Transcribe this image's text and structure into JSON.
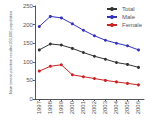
{
  "chart_data": {
    "type": "line",
    "x": [
      1997,
      1998,
      1999,
      2000,
      2001,
      2002,
      2003,
      2004,
      2005,
      2006
    ],
    "series": [
      {
        "name": "Total",
        "color": "#333333",
        "values": [
          132,
          148,
          145,
          136,
          125,
          115,
          107,
          98,
          93,
          85
        ]
      },
      {
        "name": "Male",
        "color": "#3333bb",
        "values": [
          195,
          222,
          218,
          202,
          185,
          170,
          158,
          150,
          143,
          132
        ]
      },
      {
        "name": "Female",
        "color": "#cc2222",
        "values": [
          75,
          88,
          92,
          65,
          60,
          55,
          50,
          46,
          42,
          38
        ]
      }
    ],
    "ylabel": "New smear-positive results/100,000 population",
    "xlim": [
      1996.6,
      2006.5
    ],
    "xticks": [
      1997,
      1998,
      1999,
      2000,
      2001,
      2002,
      2003,
      2004,
      2005,
      2006
    ],
    "ylim": [
      0,
      250
    ],
    "yticks": [
      0,
      50,
      100,
      150,
      200,
      250
    ],
    "marker": "circle",
    "legend": "upper right",
    "grid": false
  }
}
